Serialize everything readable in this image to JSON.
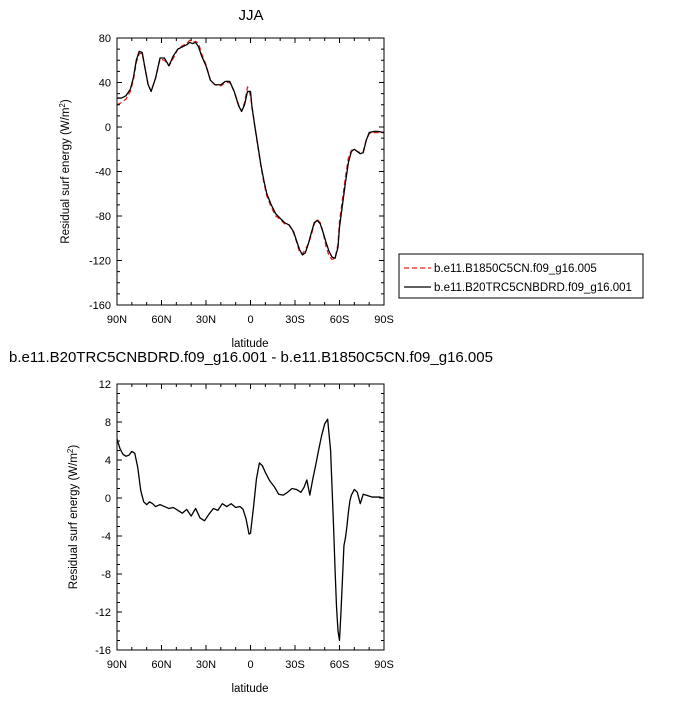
{
  "chart_data": [
    {
      "type": "line",
      "title": "JJA",
      "xlabel": "latitude",
      "ylabel": "Residual surf energy (W/m",
      "ylabel_sup": "2",
      "ylabel_close": ")",
      "xlim": [
        90,
        -90
      ],
      "ylim": [
        -160,
        80
      ],
      "xticks": [
        90,
        60,
        30,
        0,
        -30,
        -60,
        -90
      ],
      "xtick_labels": [
        "90N",
        "60N",
        "30N",
        "0",
        "30S",
        "60S",
        "90S"
      ],
      "yticks": [
        -160,
        -120,
        -80,
        -40,
        0,
        40,
        80
      ],
      "ytick_labels": [
        "-160",
        "-120",
        "-80",
        "-40",
        "0",
        "40",
        "80"
      ],
      "grid": false,
      "legend": "right",
      "series": [
        {
          "name": "b.e11.B1850C5CN.f09_g16.005",
          "color": "#e0201c",
          "dash": "dashed",
          "x": [
            90,
            87,
            84,
            81,
            79,
            77,
            75,
            73,
            71,
            69,
            67,
            64,
            61,
            58,
            55,
            52,
            49,
            46,
            43,
            41,
            39,
            37,
            35,
            33,
            30,
            27,
            24,
            20,
            17,
            14,
            11,
            8,
            6,
            4,
            2,
            0,
            -1,
            -3,
            -5,
            -7,
            -9,
            -11,
            -14,
            -17,
            -20,
            -23,
            -26,
            -29,
            -31,
            -33,
            -35,
            -37,
            -39,
            -41,
            -43,
            -45,
            -47,
            -49,
            -51,
            -53,
            -55,
            -57,
            -59,
            -60,
            -62,
            -64,
            -66,
            -68,
            -70,
            -72,
            -74,
            -76,
            -78,
            -80,
            -83,
            -86,
            -90
          ],
          "y": [
            20,
            22,
            25,
            32,
            42,
            58,
            66,
            66,
            52,
            38,
            32,
            44,
            61,
            60,
            55,
            62,
            70,
            73,
            75,
            78,
            76,
            77,
            75,
            66,
            56,
            42,
            38,
            37,
            40,
            40,
            32,
            20,
            14,
            22,
            36,
            28,
            18,
            0,
            -18,
            -35,
            -50,
            -62,
            -72,
            -80,
            -83,
            -87,
            -88,
            -95,
            -103,
            -112,
            -114,
            -110,
            -105,
            -97,
            -87,
            -83,
            -86,
            -95,
            -108,
            -116,
            -119,
            -118,
            -105,
            -85,
            -65,
            -45,
            -28,
            -21,
            -20,
            -22,
            -23,
            -22,
            -12,
            -6,
            -5,
            -5,
            -5
          ]
        },
        {
          "name": "b.e11.B20TRC5CNBDRD.f09_g16.001",
          "color": "#000000",
          "dash": "solid",
          "x": [
            90,
            87,
            84,
            81,
            79,
            77,
            75,
            73,
            71,
            69,
            67,
            64,
            61,
            58,
            55,
            52,
            49,
            46,
            43,
            41,
            39,
            37,
            35,
            33,
            30,
            27,
            24,
            20,
            17,
            14,
            11,
            8,
            6,
            4,
            2,
            0,
            -1,
            -3,
            -5,
            -7,
            -9,
            -11,
            -14,
            -17,
            -20,
            -23,
            -26,
            -29,
            -31,
            -33,
            -35,
            -37,
            -39,
            -41,
            -43,
            -45,
            -47,
            -49,
            -51,
            -53,
            -55,
            -57,
            -59,
            -60,
            -62,
            -64,
            -66,
            -68,
            -70,
            -72,
            -74,
            -76,
            -78,
            -80,
            -83,
            -86,
            -90
          ],
          "y": [
            26,
            26,
            28,
            34,
            44,
            60,
            68,
            67,
            52,
            38,
            32,
            44,
            62,
            62,
            55,
            64,
            70,
            72,
            74,
            76,
            75,
            76,
            72,
            64,
            55,
            42,
            38,
            38,
            41,
            41,
            32,
            19,
            14,
            20,
            32,
            32,
            18,
            0,
            -17,
            -34,
            -48,
            -60,
            -70,
            -78,
            -82,
            -86,
            -88,
            -94,
            -102,
            -110,
            -115,
            -113,
            -105,
            -95,
            -86,
            -84,
            -87,
            -95,
            -104,
            -112,
            -117,
            -118,
            -108,
            -90,
            -70,
            -50,
            -32,
            -22,
            -20,
            -22,
            -24,
            -23,
            -12,
            -5,
            -4,
            -4,
            -5
          ]
        }
      ]
    },
    {
      "type": "line",
      "title": "b.e11.B20TRC5CNBDRD.f09_g16.001 - b.e11.B1850C5CN.f09_g16.005",
      "xlabel": "latitude",
      "ylabel": "Residual surf energy (W/m",
      "ylabel_sup": "2",
      "ylabel_close": ")",
      "xlim": [
        90,
        -90
      ],
      "ylim": [
        -16,
        12
      ],
      "xticks": [
        90,
        60,
        30,
        0,
        -30,
        -60,
        -90
      ],
      "xtick_labels": [
        "90N",
        "60N",
        "30N",
        "0",
        "30S",
        "60S",
        "90S"
      ],
      "yticks": [
        -16,
        -12,
        -8,
        -4,
        0,
        4,
        8,
        12
      ],
      "ytick_labels": [
        "-16",
        "-12",
        "-8",
        "-4",
        "0",
        "4",
        "8",
        "12"
      ],
      "grid": false,
      "series": [
        {
          "color": "#000000",
          "dash": "solid",
          "x": [
            90,
            88,
            86,
            84,
            82,
            80,
            78,
            76,
            74,
            72,
            70,
            68,
            66,
            64,
            61,
            58,
            55,
            52,
            49,
            46,
            43,
            40,
            37,
            34,
            31,
            28,
            25,
            22,
            19,
            16,
            13,
            10,
            7,
            5,
            3,
            1,
            0,
            -2,
            -4,
            -6,
            -8,
            -10,
            -13,
            -16,
            -19,
            -22,
            -25,
            -28,
            -31,
            -34,
            -36,
            -38,
            -40,
            -42,
            -44,
            -46,
            -48,
            -50,
            -52,
            -54,
            -55,
            -56,
            -57,
            -58,
            -59,
            -60,
            -61,
            -62,
            -63,
            -64,
            -65,
            -66,
            -67,
            -68,
            -70,
            -72,
            -74,
            -76,
            -78,
            -80,
            -82,
            -84,
            -87,
            -90
          ],
          "y": [
            6.2,
            5.2,
            4.6,
            4.4,
            4.5,
            4.9,
            4.7,
            3.2,
            0.8,
            -0.4,
            -0.7,
            -0.4,
            -0.6,
            -0.9,
            -0.7,
            -0.9,
            -1.1,
            -1.0,
            -1.3,
            -1.6,
            -1.2,
            -1.9,
            -1.1,
            -2.1,
            -2.4,
            -1.7,
            -1.1,
            -1.3,
            -0.6,
            -0.9,
            -0.6,
            -1.0,
            -0.9,
            -1.2,
            -2.2,
            -3.8,
            -3.7,
            -1.0,
            2.0,
            3.7,
            3.4,
            2.7,
            1.8,
            1.2,
            0.4,
            0.3,
            0.6,
            1.0,
            0.9,
            0.6,
            1.1,
            1.9,
            0.3,
            2.0,
            3.5,
            5.1,
            6.6,
            7.8,
            8.3,
            5.0,
            1.0,
            -3.0,
            -7.5,
            -11.5,
            -14.0,
            -15.0,
            -12.0,
            -8.5,
            -5.0,
            -4.2,
            -3.0,
            -1.5,
            -0.3,
            0.3,
            0.9,
            0.6,
            -0.6,
            0.4,
            0.3,
            0.2,
            0.1,
            0.1,
            0.1,
            0.0
          ]
        }
      ]
    }
  ]
}
